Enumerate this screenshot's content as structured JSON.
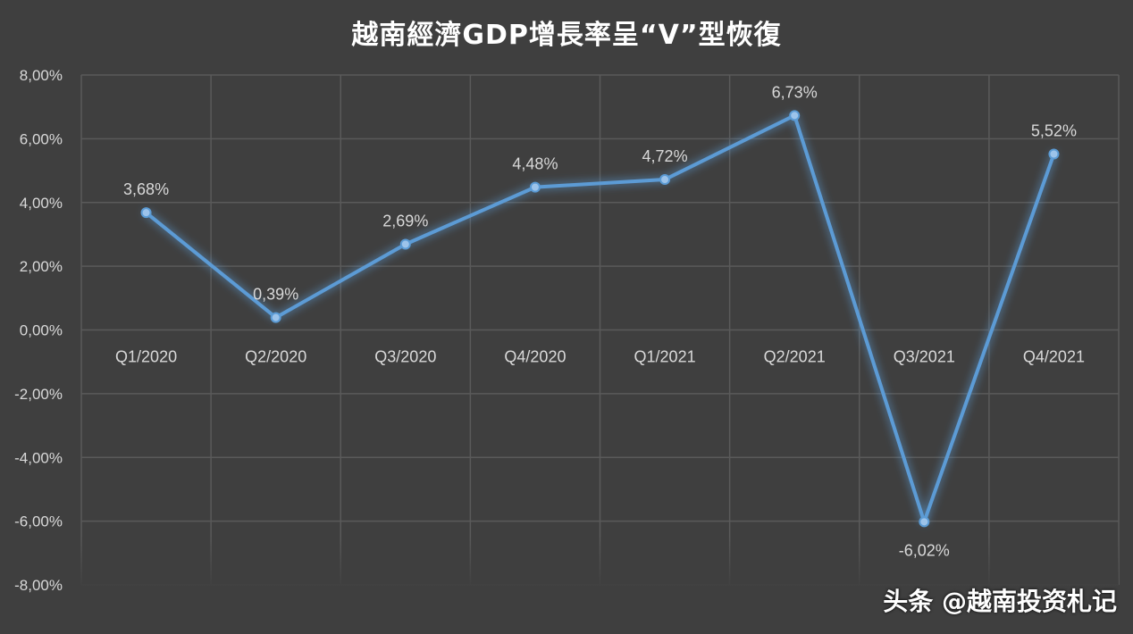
{
  "chart_data": {
    "type": "line",
    "title": "越南經濟GDP增長率呈“V”型恢復",
    "categories": [
      "Q1/2020",
      "Q2/2020",
      "Q3/2020",
      "Q4/2020",
      "Q1/2021",
      "Q2/2021",
      "Q3/2021",
      "Q4/2021"
    ],
    "values": [
      3.68,
      0.39,
      2.69,
      4.48,
      4.72,
      6.73,
      -6.02,
      5.52
    ],
    "data_labels": [
      "3,68%",
      "0,39%",
      "2,69%",
      "4,48%",
      "4,72%",
      "6,73%",
      "-6,02%",
      "5,52%"
    ],
    "ylim": [
      -8,
      8
    ],
    "yticks": [
      8,
      6,
      4,
      2,
      0,
      -2,
      -4,
      -6,
      -8
    ],
    "ytick_labels": [
      "8,00%",
      "6,00%",
      "4,00%",
      "2,00%",
      "0,00%",
      "-2,00%",
      "-4,00%",
      "-6,00%",
      "-8,00%"
    ],
    "grid": true,
    "line_color": "#5b9bd5",
    "background_color": "#3f3f3f"
  },
  "watermark": "头条 @越南投资札记"
}
